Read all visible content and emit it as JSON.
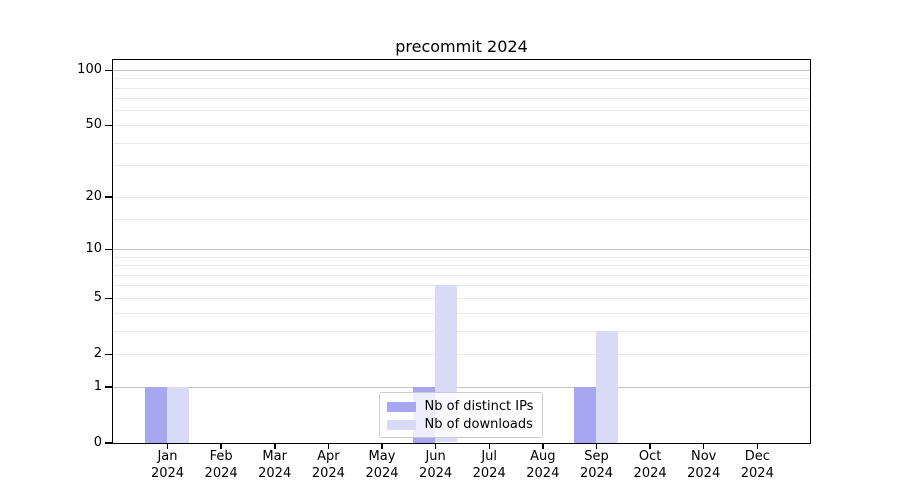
{
  "chart_data": {
    "type": "bar",
    "title": "precommit 2024",
    "xlabel": "",
    "ylabel": "",
    "yscale": "log1p",
    "ylim": [
      0,
      113.6
    ],
    "grid": "horizontal",
    "legend_position": "lower center",
    "categories": [
      {
        "month": "Jan",
        "year": "2024"
      },
      {
        "month": "Feb",
        "year": "2024"
      },
      {
        "month": "Mar",
        "year": "2024"
      },
      {
        "month": "Apr",
        "year": "2024"
      },
      {
        "month": "May",
        "year": "2024"
      },
      {
        "month": "Jun",
        "year": "2024"
      },
      {
        "month": "Jul",
        "year": "2024"
      },
      {
        "month": "Aug",
        "year": "2024"
      },
      {
        "month": "Sep",
        "year": "2024"
      },
      {
        "month": "Oct",
        "year": "2024"
      },
      {
        "month": "Nov",
        "year": "2024"
      },
      {
        "month": "Dec",
        "year": "2024"
      }
    ],
    "series": [
      {
        "name": "Nb of distinct IPs",
        "color": "#a6a6f2",
        "values": [
          1,
          0,
          0,
          0,
          0,
          1,
          0,
          0,
          1,
          0,
          0,
          0
        ]
      },
      {
        "name": "Nb of downloads",
        "color": "#d9d9f8",
        "values": [
          1,
          0,
          0,
          0,
          0,
          6,
          0,
          0,
          3,
          0,
          0,
          0
        ]
      }
    ],
    "yticks": [
      100,
      50,
      20,
      10,
      5,
      2,
      1,
      0
    ],
    "ygrid_dark": [
      100,
      10,
      1
    ],
    "ygrid_light": [
      50,
      20,
      5,
      2,
      90,
      80,
      70,
      60,
      40,
      30,
      15,
      9,
      8,
      7,
      6,
      4,
      3
    ]
  },
  "colors": {
    "grid_dark": "#c3c3c3",
    "grid_light": "#e9e9e9",
    "spine": "#000000",
    "legend_border": "#cccccc",
    "background": "#ffffff"
  }
}
